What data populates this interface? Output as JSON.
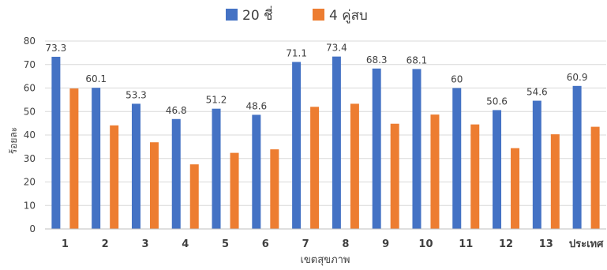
{
  "chart_data": {
    "type": "bar",
    "categories": [
      "1",
      "2",
      "3",
      "4",
      "5",
      "6",
      "7",
      "8",
      "9",
      "10",
      "11",
      "12",
      "13",
      "ประเทศ"
    ],
    "series": [
      {
        "name": "20 ชี่",
        "color": "#4472C4",
        "values": [
          73.3,
          60.1,
          53.3,
          46.8,
          51.2,
          48.6,
          71.1,
          73.4,
          68.3,
          68.1,
          60,
          50.6,
          54.6,
          60.9
        ],
        "labels": [
          "73.3",
          "60.1",
          "53.3",
          "46.8",
          "51.2",
          "48.6",
          "71.1",
          "73.4",
          "68.3",
          "68.1",
          "60",
          "50.6",
          "54.6",
          "60.9"
        ]
      },
      {
        "name": "4 คู่สบ",
        "color": "#ED7D31",
        "values": [
          59.8,
          44.1,
          36.9,
          27.5,
          32.4,
          33.9,
          52.0,
          53.3,
          44.8,
          48.7,
          44.5,
          34.4,
          40.3,
          43.5
        ]
      }
    ],
    "xlabel": "เขตสุขภาพ",
    "ylabel": "ร้อยละ",
    "ylim": [
      0,
      80
    ],
    "yticks": [
      "0",
      "10",
      "20",
      "30",
      "40",
      "50",
      "60",
      "70",
      "80"
    ],
    "grid": true,
    "legend": "top-center"
  }
}
